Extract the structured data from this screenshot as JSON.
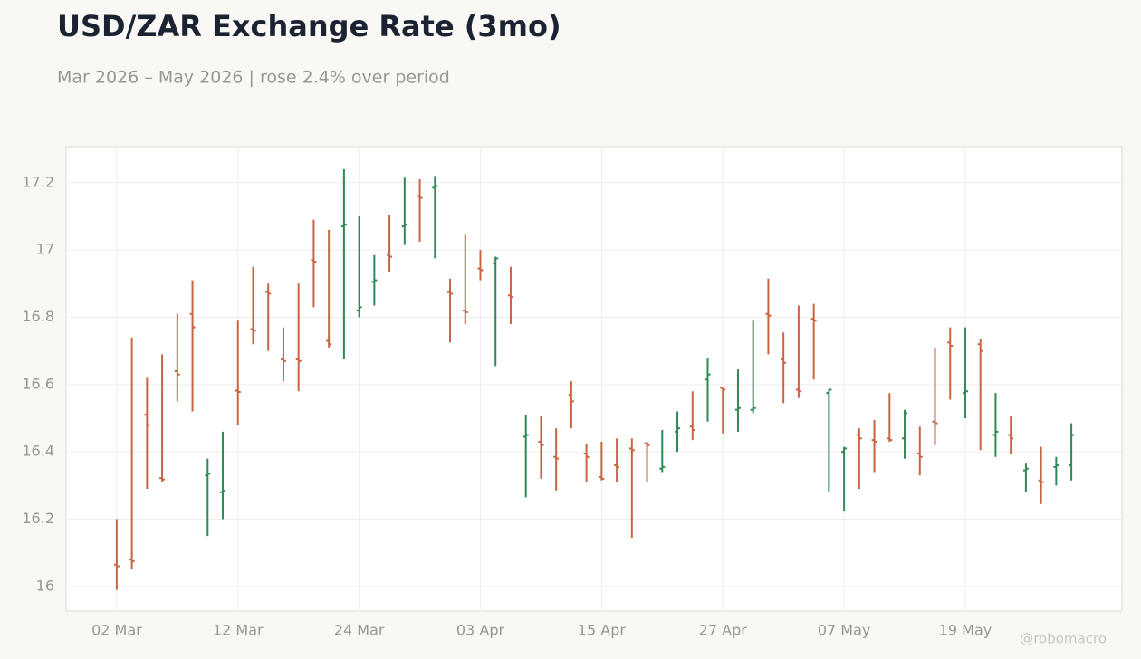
{
  "chart_data": {
    "type": "ohlc",
    "title": "USD/ZAR Exchange Rate (3mo)",
    "subtitle": "Mar 2026 – May 2026 | rose 2.4% over period",
    "watermark": "@robomacro",
    "categories": [
      "02 Mar",
      null,
      null,
      null,
      null,
      null,
      null,
      null,
      "12 Mar",
      null,
      null,
      null,
      null,
      null,
      null,
      null,
      "24 Mar",
      null,
      null,
      null,
      null,
      null,
      null,
      null,
      "03 Apr",
      null,
      null,
      null,
      null,
      null,
      null,
      null,
      "15 Apr",
      null,
      null,
      null,
      null,
      null,
      null,
      null,
      "27 Apr",
      null,
      null,
      null,
      null,
      null,
      null,
      null,
      "07 May",
      null,
      null,
      null,
      null,
      null,
      null,
      null,
      "19 May",
      null,
      null,
      null,
      null,
      null,
      null,
      null
    ],
    "open": [
      16.065,
      16.08,
      16.51,
      16.322,
      16.64,
      16.81,
      16.33,
      16.28,
      16.582,
      16.765,
      16.875,
      16.675,
      16.675,
      16.97,
      16.73,
      17.07,
      16.82,
      16.905,
      16.985,
      17.07,
      17.16,
      17.185,
      16.875,
      16.82,
      16.945,
      16.96,
      16.865,
      16.445,
      16.43,
      16.385,
      16.57,
      16.395,
      16.325,
      16.36,
      16.41,
      16.425,
      16.35,
      16.46,
      16.475,
      16.615,
      16.59,
      16.525,
      16.525,
      16.81,
      16.675,
      16.585,
      16.795,
      16.575,
      16.4,
      16.45,
      16.435,
      16.44,
      16.44,
      16.395,
      16.49,
      16.725,
      16.575,
      16.72,
      16.45,
      16.45,
      16.345,
      16.315,
      16.355,
      16.36
    ],
    "high": [
      16.2,
      16.74,
      16.62,
      16.69,
      16.81,
      16.91,
      16.38,
      16.46,
      16.79,
      16.95,
      16.9,
      16.77,
      16.9,
      17.09,
      17.06,
      17.24,
      17.1,
      16.985,
      17.105,
      17.215,
      17.21,
      17.22,
      16.915,
      17.045,
      17.0,
      16.98,
      16.95,
      16.51,
      16.505,
      16.47,
      16.61,
      16.425,
      16.43,
      16.44,
      16.44,
      16.43,
      16.465,
      16.52,
      16.58,
      16.68,
      16.59,
      16.645,
      16.79,
      16.915,
      16.755,
      16.835,
      16.84,
      16.585,
      16.415,
      16.47,
      16.495,
      16.575,
      16.525,
      16.475,
      16.71,
      16.77,
      16.77,
      16.735,
      16.575,
      16.505,
      16.365,
      16.415,
      16.385,
      16.485
    ],
    "low": [
      15.99,
      16.05,
      16.29,
      16.31,
      16.55,
      16.52,
      16.15,
      16.2,
      16.48,
      16.72,
      16.7,
      16.61,
      16.58,
      16.83,
      16.71,
      16.675,
      16.8,
      16.835,
      16.935,
      17.015,
      17.025,
      16.975,
      16.725,
      16.78,
      16.91,
      16.655,
      16.78,
      16.265,
      16.32,
      16.285,
      16.47,
      16.31,
      16.315,
      16.31,
      16.145,
      16.31,
      16.34,
      16.4,
      16.435,
      16.49,
      16.455,
      16.46,
      16.515,
      16.69,
      16.545,
      16.56,
      16.615,
      16.28,
      16.225,
      16.29,
      16.34,
      16.43,
      16.38,
      16.33,
      16.42,
      16.555,
      16.5,
      16.405,
      16.385,
      16.395,
      16.28,
      16.245,
      16.3,
      16.315
    ],
    "close": [
      16.06,
      16.075,
      16.48,
      16.318,
      16.63,
      16.77,
      16.335,
      16.285,
      16.578,
      16.76,
      16.87,
      16.67,
      16.67,
      16.965,
      16.72,
      17.075,
      16.83,
      16.91,
      16.98,
      17.075,
      17.155,
      17.19,
      16.87,
      16.815,
      16.94,
      16.975,
      16.86,
      16.45,
      16.42,
      16.38,
      16.55,
      16.385,
      16.32,
      16.355,
      16.405,
      16.42,
      16.355,
      16.47,
      16.465,
      16.63,
      16.585,
      16.53,
      16.53,
      16.805,
      16.665,
      16.58,
      16.79,
      16.585,
      16.41,
      16.44,
      16.43,
      16.435,
      16.515,
      16.385,
      16.485,
      16.715,
      16.58,
      16.7,
      16.46,
      16.44,
      16.35,
      16.31,
      16.36,
      16.45
    ],
    "up_color": "#2e8a55",
    "down_color": "#c8643f",
    "ylim": [
      15.927,
      17.307
    ],
    "yticks": [
      16,
      16.2,
      16.4,
      16.6,
      16.8,
      17,
      17.2
    ],
    "grid": true
  }
}
